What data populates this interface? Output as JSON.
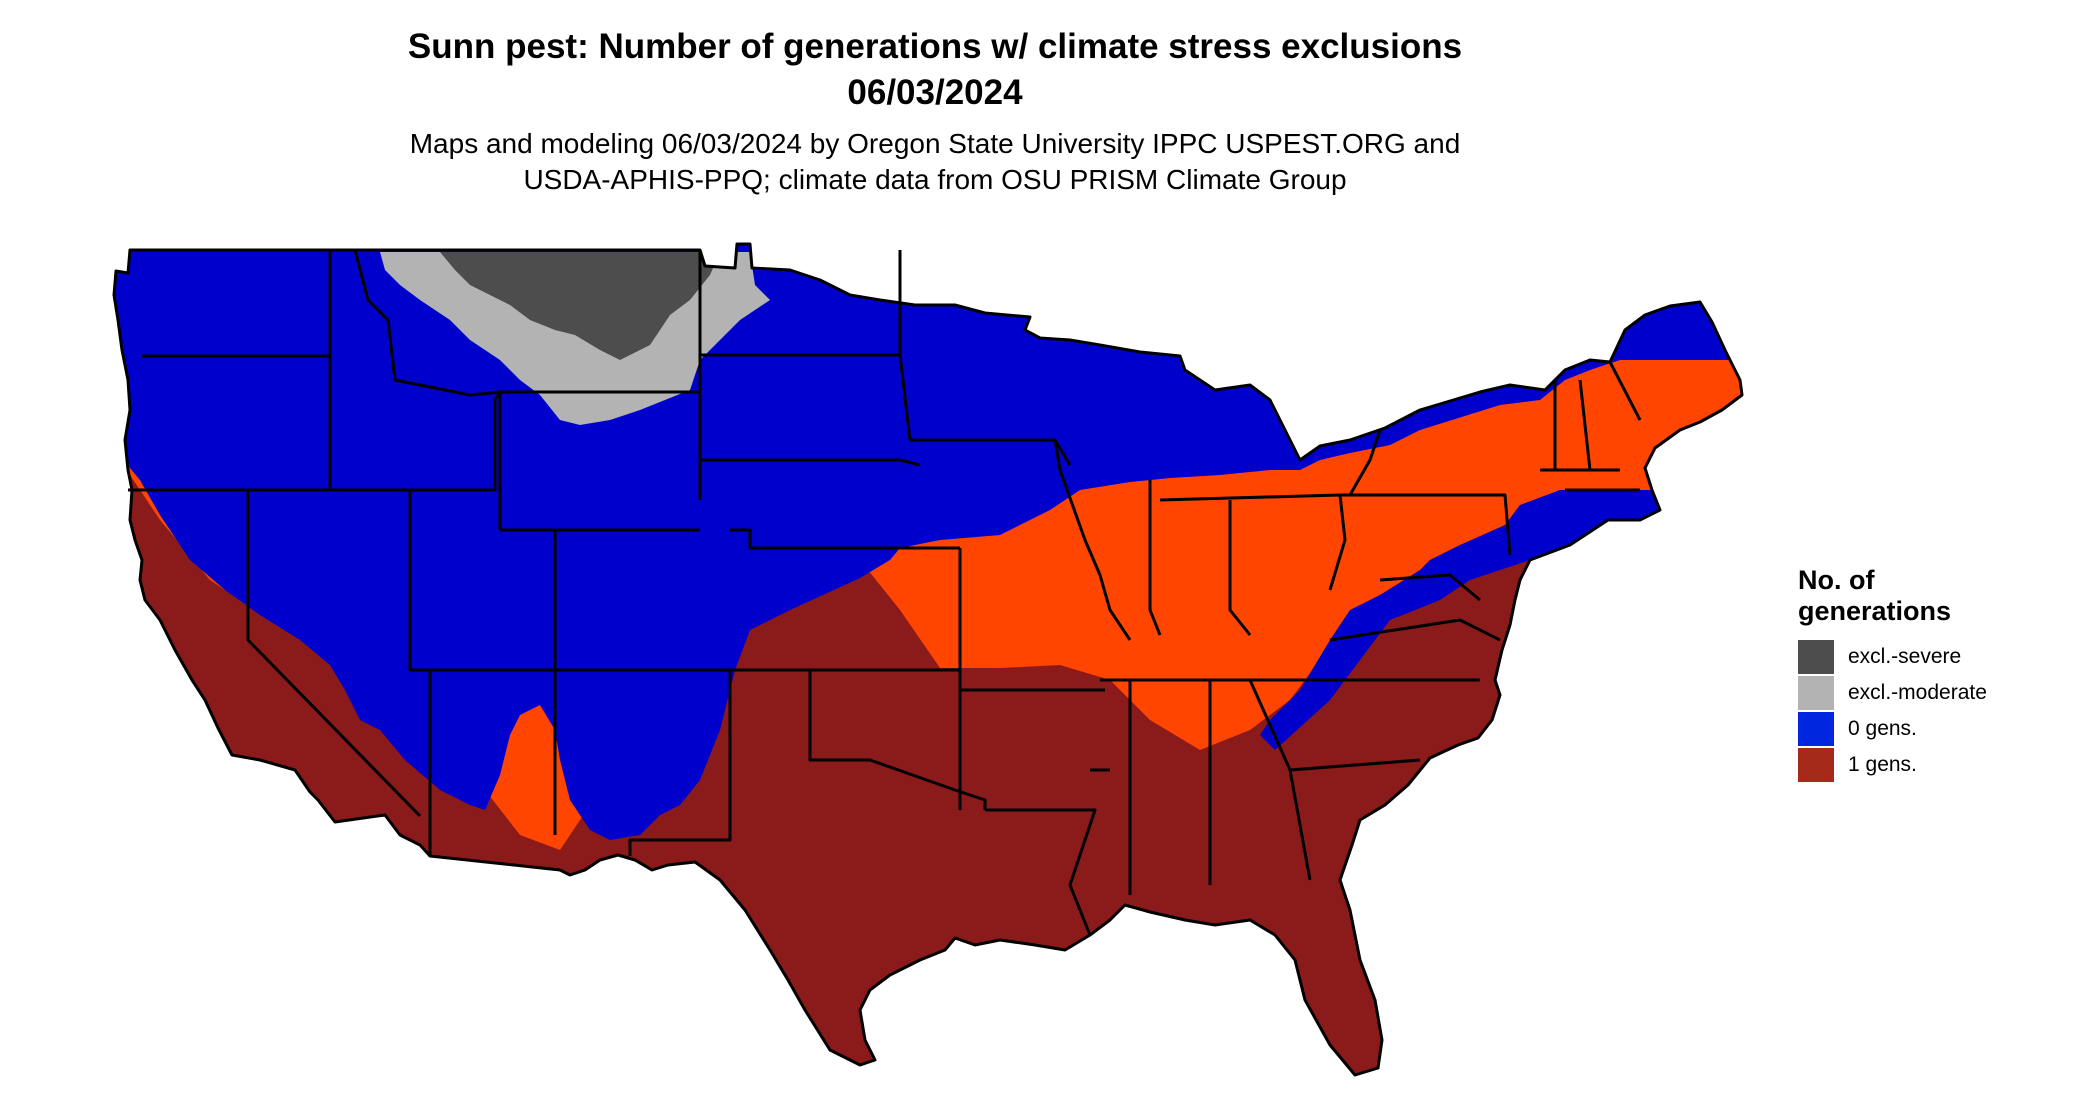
{
  "title": {
    "line1": "Sunn pest: Number of generations w/ climate stress exclusions",
    "line2": "06/03/2024"
  },
  "subtitle": {
    "line1": "Maps and modeling 06/03/2024 by Oregon State University IPPC USPEST.ORG and",
    "line2": "USDA-APHIS-PPQ; climate data from OSU PRISM Climate Group"
  },
  "map": {
    "region": "contiguous United States",
    "borders": "state boundaries",
    "colors": {
      "excl_severe": "#4d4d4d",
      "excl_moderate": "#b3b3b3",
      "zero_gens": "#0000cc",
      "one_gens": "#8b1a1a",
      "transition": "#ff4500",
      "border": "#000000"
    }
  },
  "legend": {
    "title_line1": "No. of",
    "title_line2": "generations",
    "items": [
      {
        "label": "excl.-severe",
        "color": "#4d4d4d"
      },
      {
        "label": "excl.-moderate",
        "color": "#b3b3b3"
      },
      {
        "label": "0 gens.",
        "color": "#0026e0"
      },
      {
        "label": "1 gens.",
        "color": "#a52a1a"
      }
    ]
  }
}
